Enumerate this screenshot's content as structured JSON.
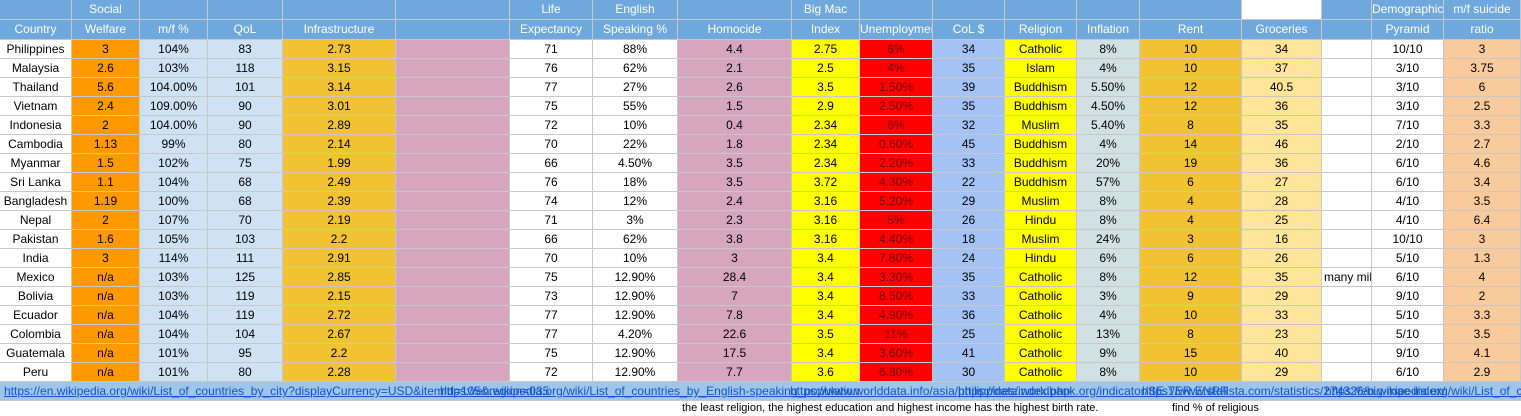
{
  "columns": [
    {
      "label": "Country"
    },
    {
      "top": "Social",
      "label": "Welfare"
    },
    {
      "label": "m/f %"
    },
    {
      "label": "QoL"
    },
    {
      "label": "Infrastructure"
    },
    null,
    {
      "top": "Life",
      "label": "Expectancy"
    },
    {
      "top": "English",
      "label": "Speaking %"
    },
    {
      "label": "Homocide"
    },
    {
      "top": "Big Mac",
      "label": "Index"
    },
    {
      "label": "Unemployment"
    },
    {
      "label": "CoL $"
    },
    {
      "label": "Religion"
    },
    {
      "label": "Inflation"
    },
    {
      "label": "Rent"
    },
    {
      "label": "Groceries"
    },
    null,
    {
      "top": "Demographic",
      "label": "Pyramid"
    },
    {
      "top": "m/f suicide",
      "label": "ratio"
    }
  ],
  "rows": [
    [
      "Philippines",
      3,
      "104%",
      83,
      2.73,
      null,
      71,
      "88%",
      4.4,
      2.75,
      "6%",
      34,
      "Catholic",
      "8%",
      10,
      34,
      null,
      "10/10",
      3
    ],
    [
      "Malaysia",
      2.6,
      "103%",
      118,
      3.15,
      null,
      76,
      "62%",
      2.1,
      2.5,
      "4%",
      35,
      "Islam",
      "4%",
      10,
      37,
      null,
      "3/10",
      3.75
    ],
    [
      "Thailand",
      5.6,
      "104.00%",
      101,
      3.14,
      null,
      77,
      "27%",
      2.6,
      3.5,
      "1.50%",
      39,
      "Buddhism",
      "5.50%",
      12,
      40.5,
      null,
      "3/10",
      6
    ],
    [
      "Vietnam",
      2.4,
      "109.00%",
      90,
      3.01,
      null,
      75,
      "55%",
      1.5,
      2.9,
      "2.50%",
      35,
      "Buddhism",
      "4.50%",
      12,
      36,
      null,
      "3/10",
      2.5
    ],
    [
      "Indonesia",
      2,
      "104.00%",
      90,
      2.89,
      null,
      72,
      "10%",
      0.4,
      2.34,
      "6%",
      32,
      "Muslim",
      "5.40%",
      8,
      35,
      null,
      "7/10",
      3.3
    ],
    [
      "Cambodia",
      1.13,
      "99%",
      80,
      2.14,
      null,
      70,
      "22%",
      1.8,
      2.34,
      "0.60%",
      45,
      "Buddhism",
      "4%",
      14,
      46,
      null,
      "2/10",
      2.7
    ],
    [
      "Myanmar",
      1.5,
      "102%",
      75,
      1.99,
      null,
      66,
      "4.50%",
      3.5,
      2.34,
      "2.20%",
      33,
      "Buddhism",
      "20%",
      19,
      36,
      null,
      "6/10",
      4.6
    ],
    [
      "Sri Lanka",
      1.1,
      "104%",
      68,
      2.49,
      null,
      76,
      "18%",
      3.5,
      3.72,
      "4.30%",
      22,
      "Buddhism",
      "57%",
      6,
      27,
      null,
      "6/10",
      3.4
    ],
    [
      "Bangladesh",
      1.19,
      "100%",
      68,
      2.39,
      null,
      74,
      "12%",
      2.4,
      3.16,
      "5.20%",
      29,
      "Muslim",
      "8%",
      4,
      28,
      null,
      "4/10",
      3.5
    ],
    [
      "Nepal",
      2,
      "107%",
      70,
      2.19,
      null,
      71,
      "3%",
      2.3,
      3.16,
      "5%",
      26,
      "Hindu",
      "8%",
      4,
      25,
      null,
      "4/10",
      6.4
    ],
    [
      "Pakistan",
      1.6,
      "105%",
      103,
      2.2,
      null,
      66,
      "62%",
      3.8,
      3.16,
      "4.40%",
      18,
      "Muslim",
      "24%",
      3,
      16,
      null,
      "10/10",
      3
    ],
    [
      "India",
      3,
      "114%",
      111,
      2.91,
      null,
      70,
      "10%",
      3,
      3.4,
      "7.80%",
      24,
      "Hindu",
      "6%",
      6,
      26,
      null,
      "5/10",
      1.3
    ],
    [
      "Mexico",
      "n/a",
      "103%",
      125,
      2.85,
      null,
      75,
      "12.90%",
      28.4,
      3.4,
      "3.30%",
      35,
      "Catholic",
      "8%",
      12,
      35,
      "many mil",
      "6/10",
      4
    ],
    [
      "Bolivia",
      "n/a",
      "103%",
      119,
      2.15,
      null,
      73,
      "12.90%",
      7,
      3.4,
      "8.50%",
      33,
      "Catholic",
      "3%",
      9,
      29,
      null,
      "9/10",
      2
    ],
    [
      "Ecuador",
      "n/a",
      "104%",
      119,
      2.72,
      null,
      77,
      "12.90%",
      7.8,
      3.4,
      "4.90%",
      36,
      "Catholic",
      "4%",
      10,
      33,
      null,
      "5/10",
      3.3
    ],
    [
      "Colombia",
      "n/a",
      "104%",
      104,
      2.67,
      null,
      77,
      "4.20%",
      22.6,
      3.5,
      "11%",
      25,
      "Catholic",
      "13%",
      8,
      23,
      null,
      "5/10",
      3.5
    ],
    [
      "Guatemala",
      "n/a",
      "101%",
      95,
      2.2,
      null,
      75,
      "12.90%",
      17.5,
      3.4,
      "3.60%",
      41,
      "Catholic",
      "9%",
      15,
      40,
      null,
      "9/10",
      4.1
    ],
    [
      "Peru",
      "n/a",
      "101%",
      80,
      2.28,
      null,
      72,
      "12.90%",
      7.7,
      3.6,
      "6.80%",
      30,
      "Catholic",
      "8%",
      10,
      29,
      null,
      "6/10",
      2.9
    ]
  ],
  "links": [
    "https://en.wikipedia.org/wiki/List_of_countries_by_city?displayCurrency=USD&itemId=105&region=035",
    "https://en.wikipedia.org/wiki/List_of_countries_by_English-speaking_population",
    "https://www.worlddata.info/asia/philippines/index.php",
    "https://data.worldbank.org/indicator/SE.TER.ENRR",
    "https://www.statista.com/statistics/274326/big-mac-index/",
    "https://en.wikipedia.org/wiki/List_of_countries_by_social_welfare"
  ],
  "notes": [
    "the least religion, the highest education and highest income has the highest birth rate.",
    "find % of religious"
  ]
}
